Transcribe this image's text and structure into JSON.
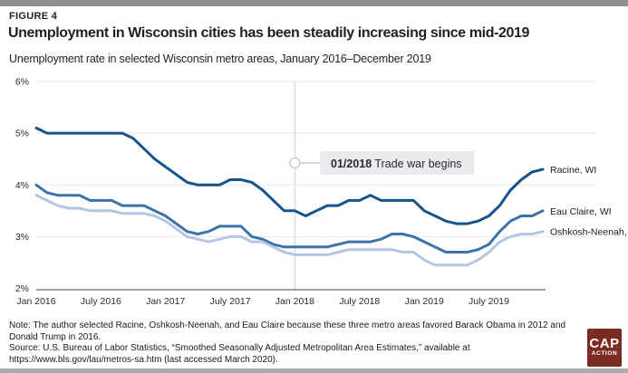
{
  "page": {
    "figure_label": "FIGURE 4",
    "title": "Unemployment in Wisconsin cities has been steadily increasing since mid-2019",
    "subtitle": "Unemployment rate in selected Wisconsin metro areas, January 2016–December 2019",
    "note": "Note: The author selected Racine, Oshkosh-Neenah, and Eau Claire because these three metro areas favored Barack Obama in 2012 and Donald Trump in 2016.",
    "source": "Source: U.S. Bureau of Labor Statistics, “Smoothed Seasonally Adjusted Metropolitan Area Estimates,” available at https://www.bls.gov/lau/metros-sa.htm (last accessed March 2020).",
    "logo": {
      "line1": "CAP",
      "line2": "ACTION",
      "background_color": "#7b2b24"
    }
  },
  "chart_data": {
    "type": "line",
    "title": "Unemployment rate in selected Wisconsin metro areas, January 2016–December 2019",
    "x_start": "Jan 2016",
    "x_end": "Dec 2019",
    "n_points": 48,
    "grid": "horizontal",
    "legend_position": "right-end-labels",
    "x_ticks": [
      {
        "label": "Jan 2016",
        "month": 0
      },
      {
        "label": "July 2016",
        "month": 6
      },
      {
        "label": "Jan 2017",
        "month": 12
      },
      {
        "label": "July 2017",
        "month": 18
      },
      {
        "label": "Jan 2018",
        "month": 24
      },
      {
        "label": "July 2018",
        "month": 30
      },
      {
        "label": "Jan 2019",
        "month": 36
      },
      {
        "label": "July 2019",
        "month": 42
      }
    ],
    "y_axis": {
      "min": 2,
      "max": 6,
      "ticks": [
        {
          "label": "2%",
          "value": 2
        },
        {
          "label": "3%",
          "value": 3
        },
        {
          "label": "4%",
          "value": 4
        },
        {
          "label": "5%",
          "value": 5
        },
        {
          "label": "6%",
          "value": 6
        }
      ]
    },
    "annotation": {
      "label_bold": "01/2018",
      "label_text": "Trade war begins",
      "month": 24
    },
    "series": [
      {
        "name": "Racine, WI",
        "color": "#16548c",
        "values": [
          5.1,
          5.0,
          5.0,
          5.0,
          5.0,
          5.0,
          5.0,
          5.0,
          5.0,
          4.9,
          4.7,
          4.5,
          4.35,
          4.2,
          4.05,
          4.0,
          4.0,
          4.0,
          4.1,
          4.1,
          4.05,
          3.9,
          3.7,
          3.5,
          3.5,
          3.4,
          3.5,
          3.6,
          3.6,
          3.7,
          3.7,
          3.8,
          3.7,
          3.7,
          3.7,
          3.7,
          3.5,
          3.4,
          3.3,
          3.25,
          3.25,
          3.3,
          3.4,
          3.6,
          3.9,
          4.1,
          4.25,
          4.3
        ]
      },
      {
        "name": "Eau Claire, WI",
        "color": "#3c73a8",
        "values": [
          4.0,
          3.85,
          3.8,
          3.8,
          3.8,
          3.7,
          3.7,
          3.7,
          3.6,
          3.6,
          3.6,
          3.5,
          3.4,
          3.25,
          3.1,
          3.05,
          3.1,
          3.2,
          3.2,
          3.2,
          3.0,
          2.95,
          2.85,
          2.8,
          2.8,
          2.8,
          2.8,
          2.8,
          2.85,
          2.9,
          2.9,
          2.9,
          2.95,
          3.05,
          3.05,
          3.0,
          2.9,
          2.8,
          2.7,
          2.7,
          2.7,
          2.75,
          2.85,
          3.1,
          3.3,
          3.4,
          3.4,
          3.5
        ]
      },
      {
        "name": "Oshkosh-Neenah, WI",
        "color": "#b4c6e0",
        "values": [
          3.8,
          3.7,
          3.6,
          3.55,
          3.55,
          3.5,
          3.5,
          3.5,
          3.45,
          3.45,
          3.45,
          3.4,
          3.3,
          3.15,
          3.0,
          2.95,
          2.9,
          2.95,
          3.0,
          3.0,
          2.9,
          2.9,
          2.8,
          2.7,
          2.65,
          2.65,
          2.65,
          2.65,
          2.7,
          2.75,
          2.75,
          2.75,
          2.75,
          2.75,
          2.7,
          2.7,
          2.55,
          2.45,
          2.45,
          2.45,
          2.45,
          2.55,
          2.7,
          2.9,
          3.0,
          3.05,
          3.05,
          3.1
        ]
      }
    ]
  }
}
